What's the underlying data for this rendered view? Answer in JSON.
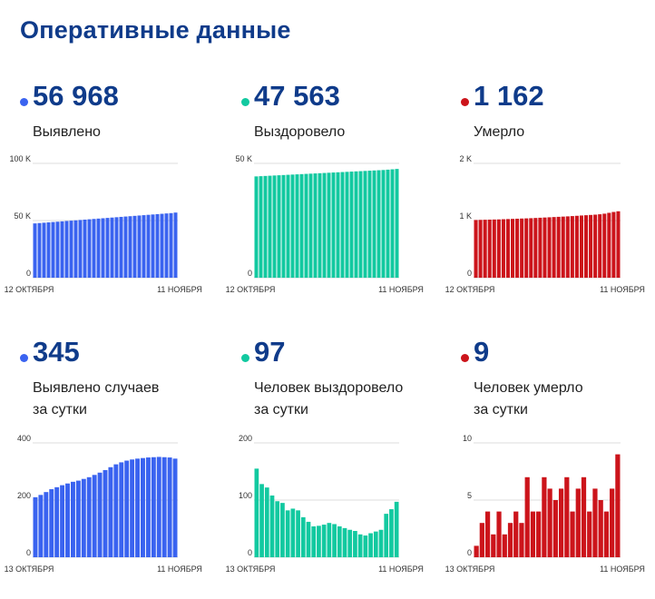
{
  "title": "Оперативные данные",
  "panels": [
    {
      "value": "56 968",
      "label": "Выявлено",
      "color": "#3a63f0",
      "chart_data": {
        "type": "bar",
        "ylim": [
          0,
          100000
        ],
        "yticks": [
          0,
          50000,
          100000
        ],
        "ytick_labels": [
          "0",
          "50 K",
          "100 K"
        ],
        "x_start": "12 ОКТЯБРЯ",
        "x_end": "11 НОЯБРЯ",
        "values": [
          47500,
          47800,
          48100,
          48400,
          48700,
          49000,
          49300,
          49600,
          49900,
          50200,
          50500,
          50800,
          51100,
          51400,
          51700,
          52000,
          52300,
          52600,
          52900,
          53200,
          53500,
          53800,
          54100,
          54400,
          54700,
          55000,
          55300,
          55600,
          55900,
          56200,
          56500,
          56968
        ]
      }
    },
    {
      "value": "47 563",
      "label": "Выздоровело",
      "color": "#12c9a0",
      "chart_data": {
        "type": "bar",
        "ylim": [
          0,
          50000
        ],
        "yticks": [
          0,
          50000
        ],
        "ytick_labels": [
          "0",
          "50 K"
        ],
        "x_start": "12 ОКТЯБРЯ",
        "x_end": "11 НОЯБРЯ",
        "values": [
          44300,
          44400,
          44500,
          44600,
          44700,
          44800,
          44900,
          45000,
          45100,
          45200,
          45300,
          45400,
          45500,
          45600,
          45700,
          45800,
          45900,
          46000,
          46100,
          46200,
          46300,
          46400,
          46500,
          46600,
          46700,
          46800,
          46900,
          47000,
          47100,
          47250,
          47400,
          47563
        ]
      }
    },
    {
      "value": "1 162",
      "label": "Умерло",
      "color": "#cc141b",
      "chart_data": {
        "type": "bar",
        "ylim": [
          0,
          2000
        ],
        "yticks": [
          0,
          1000,
          2000
        ],
        "ytick_labels": [
          "0",
          "1 K",
          "2 K"
        ],
        "x_start": "12 ОКТЯБРЯ",
        "x_end": "11 НОЯБРЯ",
        "values": [
          1010,
          1012,
          1014,
          1016,
          1018,
          1020,
          1023,
          1026,
          1029,
          1032,
          1035,
          1038,
          1041,
          1045,
          1049,
          1053,
          1057,
          1061,
          1065,
          1069,
          1073,
          1078,
          1083,
          1088,
          1093,
          1098,
          1103,
          1110,
          1120,
          1135,
          1150,
          1162
        ]
      }
    },
    {
      "value": "345",
      "label": "Выявлено случаев\nза сутки",
      "color": "#3a63f0",
      "chart_data": {
        "type": "bar",
        "ylim": [
          0,
          400
        ],
        "yticks": [
          0,
          200,
          400
        ],
        "ytick_labels": [
          "0",
          "200",
          "400"
        ],
        "x_start": "13 ОКТЯБРЯ",
        "x_end": "11 НОЯБРЯ",
        "values": [
          210,
          218,
          228,
          238,
          245,
          252,
          258,
          264,
          268,
          274,
          280,
          288,
          296,
          305,
          315,
          325,
          332,
          338,
          342,
          345,
          347,
          349,
          350,
          351,
          350,
          349,
          345
        ]
      }
    },
    {
      "value": "97",
      "label": "Человек выздоровело\nза сутки",
      "color": "#12c9a0",
      "chart_data": {
        "type": "bar",
        "ylim": [
          0,
          200
        ],
        "yticks": [
          0,
          100,
          200
        ],
        "ytick_labels": [
          "0",
          "100",
          "200"
        ],
        "x_start": "13 ОКТЯБРЯ",
        "x_end": "11 НОЯБРЯ",
        "values": [
          155,
          128,
          122,
          108,
          98,
          95,
          82,
          85,
          82,
          70,
          62,
          54,
          55,
          57,
          60,
          58,
          54,
          51,
          48,
          46,
          40,
          38,
          42,
          45,
          48,
          76,
          84,
          97
        ]
      }
    },
    {
      "value": "9",
      "label": "Человек умерло\nза сутки",
      "color": "#cc141b",
      "chart_data": {
        "type": "bar",
        "ylim": [
          0,
          10
        ],
        "yticks": [
          0,
          5,
          10
        ],
        "ytick_labels": [
          "0",
          "5",
          "10"
        ],
        "x_start": "13 ОКТЯБРЯ",
        "x_end": "11 НОЯБРЯ",
        "values": [
          1,
          3,
          4,
          2,
          4,
          2,
          3,
          4,
          3,
          7,
          4,
          4,
          7,
          6,
          5,
          6,
          7,
          4,
          6,
          7,
          4,
          6,
          5,
          4,
          6,
          9
        ]
      }
    }
  ]
}
